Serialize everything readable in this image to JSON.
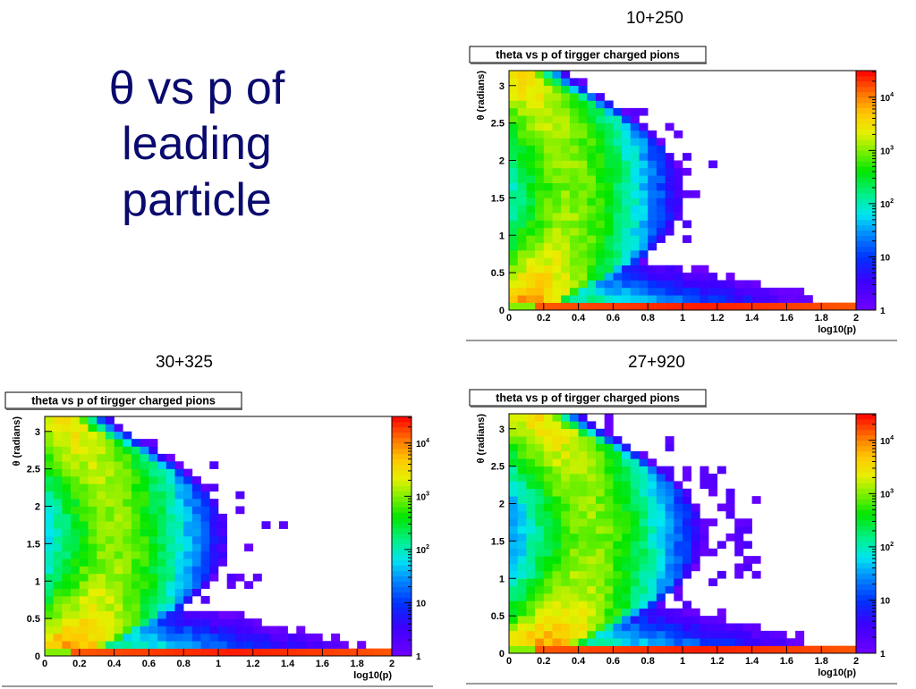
{
  "slide": {
    "title_line1": "θ vs p of",
    "title_line2": "leading",
    "title_line3": "particle"
  },
  "captions": [
    "10+250",
    "30+325",
    "27+920"
  ],
  "chart_data": [
    {
      "type": "heatmap",
      "title": "theta vs p of tirgger charged pions",
      "xlabel": "log10(p)",
      "ylabel": "θ (radians)",
      "xlim": [
        0,
        2
      ],
      "ylim": [
        0,
        3.2
      ],
      "x_ticks": [
        "0",
        "0.2",
        "0.4",
        "0.6",
        "0.8",
        "1",
        "1.2",
        "1.4",
        "1.6",
        "1.8",
        "2"
      ],
      "y_ticks": [
        "0",
        "0.5",
        "1",
        "1.5",
        "2",
        "2.5",
        "3"
      ],
      "z_scale": "log",
      "z_ticks": [
        "1",
        "10",
        "10²",
        "10³",
        "10⁴"
      ],
      "zlim_log10": [
        0,
        4.5
      ],
      "bins": {
        "nx": 40,
        "ny": 32
      },
      "stats": "10+250",
      "model": {
        "edge_shift": 0.0,
        "bulk_shift": 0.0,
        "tail_scale": 0.55,
        "seed": 7
      }
    },
    {
      "type": "heatmap",
      "title": "theta vs p of tirgger charged pions",
      "xlabel": "log10(p)",
      "ylabel": "θ (radians)",
      "xlim": [
        0,
        2
      ],
      "ylim": [
        0,
        3.2
      ],
      "x_ticks": [
        "0",
        "0.2",
        "0.4",
        "0.6",
        "0.8",
        "1",
        "1.2",
        "1.4",
        "1.6",
        "1.8",
        "2"
      ],
      "y_ticks": [
        "0",
        "0.5",
        "1",
        "1.5",
        "2",
        "2.5",
        "3"
      ],
      "z_scale": "log",
      "z_ticks": [
        "1",
        "10",
        "10²",
        "10³",
        "10⁴"
      ],
      "zlim_log10": [
        0,
        4.5
      ],
      "bins": {
        "nx": 40,
        "ny": 32
      },
      "stats": "30+325",
      "model": {
        "edge_shift": 0.04,
        "bulk_shift": 0.05,
        "tail_scale": 0.75,
        "seed": 19
      }
    },
    {
      "type": "heatmap",
      "title": "theta vs p of tirgger charged pions",
      "xlabel": "log10(p)",
      "ylabel": "θ (radians)",
      "xlim": [
        0,
        2
      ],
      "ylim": [
        0,
        3.2
      ],
      "x_ticks": [
        "0",
        "0.2",
        "0.4",
        "0.6",
        "0.8",
        "1",
        "1.2",
        "1.4",
        "1.6",
        "1.8",
        "2"
      ],
      "y_ticks": [
        "0",
        "0.5",
        "1",
        "1.5",
        "2",
        "2.5",
        "3"
      ],
      "z_scale": "log",
      "z_ticks": [
        "1",
        "10",
        "10²",
        "10³",
        "10⁴"
      ],
      "zlim_log10": [
        0,
        4.5
      ],
      "bins": {
        "nx": 40,
        "ny": 32
      },
      "stats": "27+920",
      "model": {
        "edge_shift": 0.1,
        "bulk_shift": 0.12,
        "tail_scale": 1.0,
        "seed": 31
      }
    }
  ]
}
